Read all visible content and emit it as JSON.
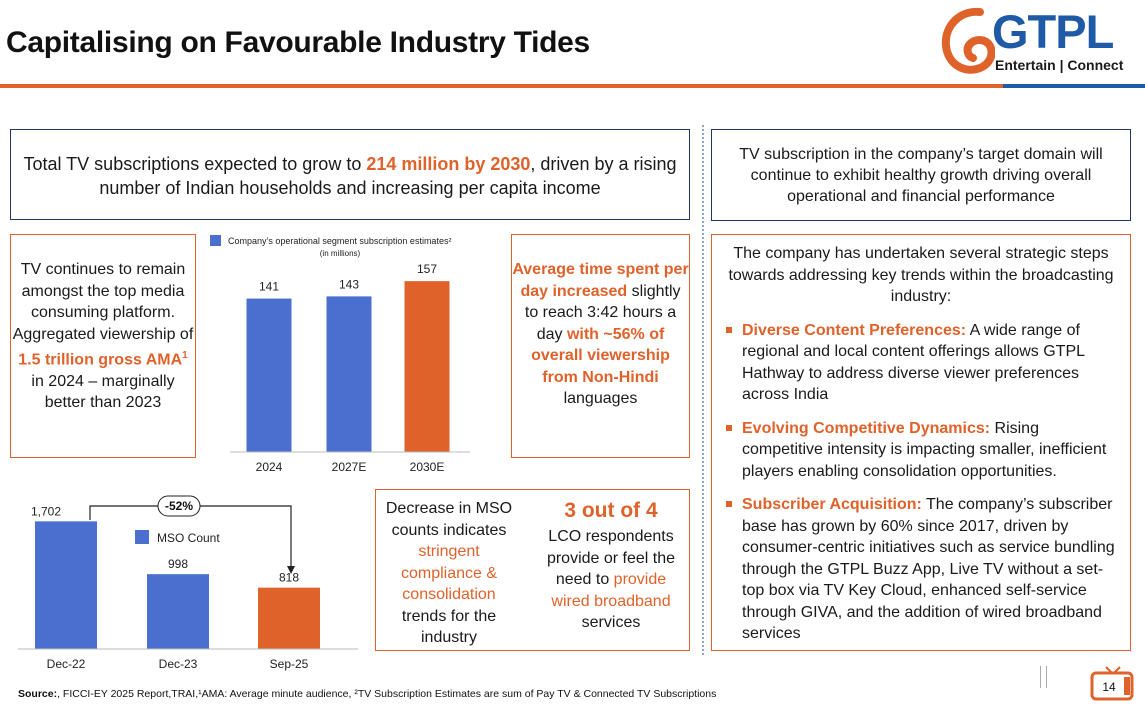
{
  "title": "Capitalising on Favourable Industry Tides",
  "logo": {
    "name": "GTPL",
    "tagline": "Entertain | Connect"
  },
  "headline": {
    "pre": "Total TV subscriptions expected to grow to ",
    "highlight": "214 million by 2030",
    "post": ", driven by a rising number of Indian households and increasing per capita income"
  },
  "right_top": "TV subscription in the company’s target domain will continue to exhibit healthy growth driving overall operational and financial performance",
  "left_mid": {
    "pre": "TV continues to remain amongst the top media consuming platform. Aggregated viewership of ",
    "highlight": "1.5 trillion gross AMA",
    "sup": "1",
    "post": " in 2024 – marginally better than 2023"
  },
  "center_mid": {
    "h1": "Average time spent per day increased",
    "mid": " slightly to reach 3:42 hours a day ",
    "h2": "with ~56% of overall viewership from Non-Hindi",
    "post": " languages"
  },
  "right_big": {
    "intro": "The company has undertaken several strategic steps towards addressing key trends within the broadcasting industry:",
    "items": [
      {
        "head": "Diverse Content Preferences:",
        "body": " A wide range of regional and local content offerings allows GTPL Hathway to address diverse viewer preferences across India"
      },
      {
        "head": "Evolving Competitive Dynamics:",
        "body": " Rising competitive intensity is impacting smaller, inefficient players enabling consolidation opportunities."
      },
      {
        "head": "Subscriber Acquisition:",
        "body": " The company’s subscriber base has grown by 60% since 2017, driven by consumer-centric initiatives such as service bundling through the GTPL Buzz App, Live TV without a set-top box via TV Key Cloud, enhanced self-service through GIVA, and the addition of wired broadband services"
      }
    ]
  },
  "mso_box": {
    "left_pre": "Decrease in MSO counts indicates ",
    "left_hl": "stringent compliance & consolidation",
    "left_post": " trends for the industry",
    "right_big": "3 out of 4",
    "right_pre": "LCO respondents provide or feel the need to ",
    "right_hl": "provide wired broadband",
    "right_post": " services"
  },
  "source": {
    "label": "Source:",
    "text": ", FICCI-EY 2025 Report,TRAI,¹AMA: Average minute audience, ²TV Subscription Estimates are sum of Pay TV & Connected TV Subscriptions"
  },
  "page_number": "14",
  "colors": {
    "orange": "#e0622b",
    "blue": "#4a6fcf"
  },
  "chart_data": [
    {
      "type": "bar",
      "title": "Company’s operational segment subscription estimates²",
      "subtitle": "(in millions)",
      "categories": [
        "2024",
        "2027E",
        "2030E"
      ],
      "values": [
        141,
        143,
        157
      ],
      "ylim": [
        0,
        170
      ],
      "bar_colors": [
        "#4a6fcf",
        "#4a6fcf",
        "#e0622b"
      ],
      "legend": "top-left"
    },
    {
      "type": "bar",
      "title": "",
      "legend_label": "MSO Count",
      "categories": [
        "Dec-22",
        "Dec-23",
        "Sep-25"
      ],
      "values": [
        1702,
        998,
        818
      ],
      "value_labels": [
        "1,702",
        "998",
        "818"
      ],
      "ylim": [
        0,
        2000
      ],
      "change_label": "-52%",
      "bar_colors": [
        "#4a6fcf",
        "#4a6fcf",
        "#e0622b"
      ],
      "legend": "top-center"
    }
  ]
}
